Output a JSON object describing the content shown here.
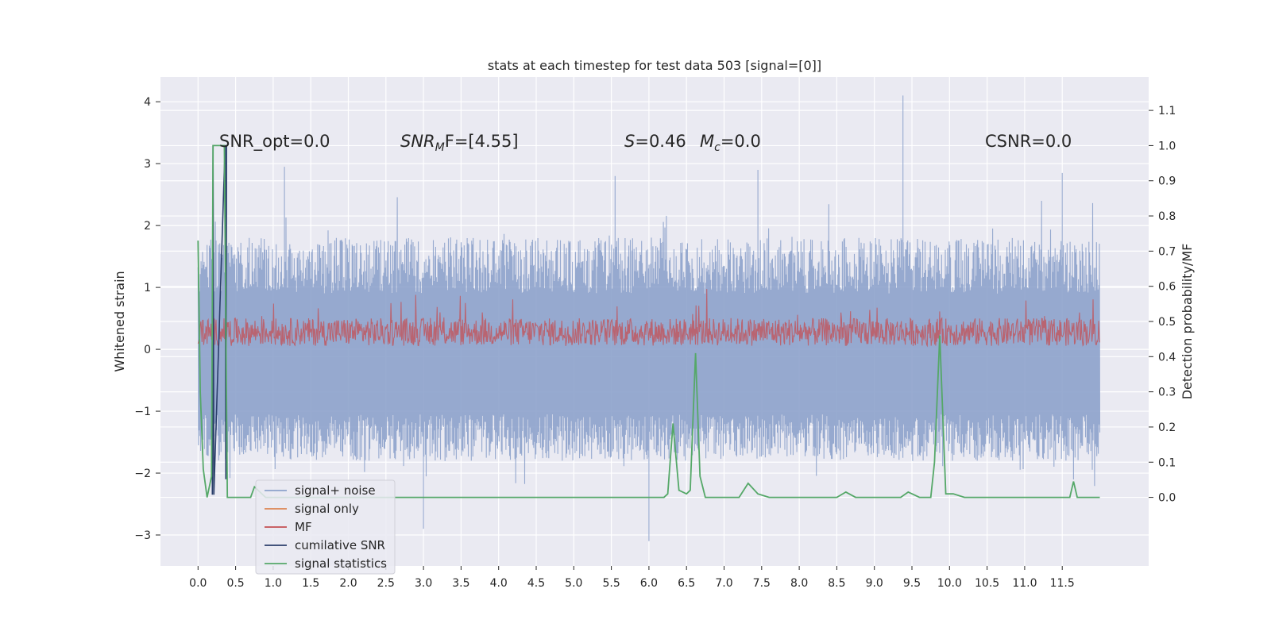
{
  "chart_data": {
    "type": "line",
    "title": "stats at each timestep for test data 503 [signal=[0]]",
    "xlabel": "",
    "ylabel": "Whitened strain",
    "y2label": "Detection probability/MF",
    "xlim": [
      -0.5,
      12.65
    ],
    "ylim": [
      -3.5,
      4.4
    ],
    "y2lim": [
      -0.195,
      1.195
    ],
    "x_ticks": [
      0.0,
      0.5,
      1.0,
      1.5,
      2.0,
      2.5,
      3.0,
      3.5,
      4.0,
      4.5,
      5.0,
      5.5,
      6.0,
      6.5,
      7.0,
      7.5,
      8.0,
      8.5,
      9.0,
      9.5,
      10.0,
      10.5,
      11.0,
      11.5
    ],
    "x_tick_labels": [
      "0.0",
      "0.5",
      "1.0",
      "1.5",
      "2.0",
      "2.5",
      "3.0",
      "3.5",
      "4.0",
      "4.5",
      "5.0",
      "5.5",
      "6.0",
      "6.5",
      "7.0",
      "7.5",
      "8.0",
      "8.5",
      "9.0",
      "9.5",
      "10.0",
      "10.5",
      "11.0",
      "11.5"
    ],
    "y_ticks": [
      -3,
      -2,
      -1,
      0,
      1,
      2,
      3,
      4
    ],
    "y_tick_labels": [
      "−3",
      "−2",
      "−1",
      "0",
      "1",
      "2",
      "3",
      "4"
    ],
    "y2_ticks": [
      0.0,
      0.1,
      0.2,
      0.3,
      0.4,
      0.5,
      0.6,
      0.7,
      0.8,
      0.9,
      1.0,
      1.1
    ],
    "y2_tick_labels": [
      "0.0",
      "0.1",
      "0.2",
      "0.3",
      "0.4",
      "0.5",
      "0.6",
      "0.7",
      "0.8",
      "0.9",
      "1.0",
      "1.1"
    ],
    "grid": true,
    "legend_position": "bottom-left",
    "annotations": {
      "snr_opt": "SNR_opt=0.0",
      "snr_mf_main": "SNR",
      "snr_mf_sub": "M",
      "snr_mf_rest": "F=[4.55]",
      "s_italic": "S",
      "s_rest": "=0.46",
      "mc_main": "M",
      "mc_sub": "c",
      "mc_rest": "=0.0",
      "csnr": "CSNR=0.0"
    },
    "series": [
      {
        "name": "signal+ noise",
        "color": "#8da2cb",
        "axis": "left",
        "kind": "noise",
        "x_range": [
          0.0,
          12.0
        ],
        "band": [
          -1.7,
          1.6
        ],
        "notable_peaks": [
          [
            1.15,
            2.95
          ],
          [
            5.55,
            2.8
          ],
          [
            6.0,
            -3.1
          ],
          [
            7.45,
            2.9
          ],
          [
            9.38,
            4.1
          ],
          [
            11.5,
            2.85
          ],
          [
            3.0,
            -2.9
          ]
        ]
      },
      {
        "name": "signal only",
        "color": "#dd8452",
        "axis": "left",
        "kind": "flat",
        "values": [
          0.0
        ]
      },
      {
        "name": "MF",
        "color": "#c44e52",
        "axis": "left",
        "kind": "mf",
        "x_range": [
          0.0,
          12.0
        ],
        "band": [
          0.05,
          0.6
        ]
      },
      {
        "name": "cumilative SNR",
        "color": "#2b3f6b",
        "axis": "left",
        "x": [
          0.19,
          0.2,
          0.21,
          0.36,
          0.37,
          0.38
        ],
        "y": [
          -2.35,
          3.3,
          -2.35,
          3.3,
          -2.1,
          3.3
        ]
      },
      {
        "name": "signal statistics",
        "color": "#55a868",
        "axis": "right",
        "x": [
          0.0,
          0.03,
          0.07,
          0.12,
          0.18,
          0.2,
          0.22,
          0.3,
          0.35,
          0.37,
          0.39,
          0.5,
          0.7,
          0.75,
          0.9,
          1.5,
          2.0,
          4.0,
          6.0,
          6.2,
          6.25,
          6.32,
          6.4,
          6.5,
          6.55,
          6.62,
          6.68,
          6.75,
          7.0,
          7.2,
          7.32,
          7.45,
          7.6,
          8.5,
          8.62,
          8.75,
          9.0,
          9.35,
          9.45,
          9.6,
          9.75,
          9.8,
          9.87,
          9.95,
          10.05,
          10.2,
          10.8,
          11.6,
          11.65,
          11.7,
          12.0
        ],
        "y": [
          0.73,
          0.3,
          0.08,
          0.0,
          0.06,
          1.0,
          1.0,
          1.0,
          1.0,
          0.5,
          0.0,
          0.0,
          0.0,
          0.03,
          0.0,
          0.0,
          0.0,
          0.0,
          0.0,
          0.0,
          0.01,
          0.21,
          0.02,
          0.01,
          0.02,
          0.41,
          0.06,
          0.0,
          0.0,
          0.0,
          0.04,
          0.01,
          0.0,
          0.0,
          0.015,
          0.0,
          0.0,
          0.0,
          0.015,
          0.0,
          0.0,
          0.1,
          0.46,
          0.01,
          0.01,
          0.0,
          0.0,
          0.0,
          0.045,
          0.0,
          0.0
        ]
      }
    ]
  }
}
